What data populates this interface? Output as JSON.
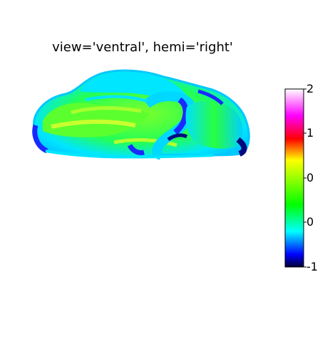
{
  "title": "view='ventral', hemi='right'",
  "colorbar": {
    "tick_labels": [
      "2",
      "1",
      "0",
      "0",
      "-1"
    ],
    "colors": [
      "#000033",
      "#0000ff",
      "#00ffff",
      "#00ff00",
      "#ffff00",
      "#ff0000",
      "#ff00ff",
      "#ffffff"
    ]
  },
  "surface_colors": {
    "cyan": "#00e6ff",
    "green": "#33ff33",
    "yellow_green": "#b8ff2e",
    "blue": "#1a2aff",
    "navy": "#000a80"
  }
}
